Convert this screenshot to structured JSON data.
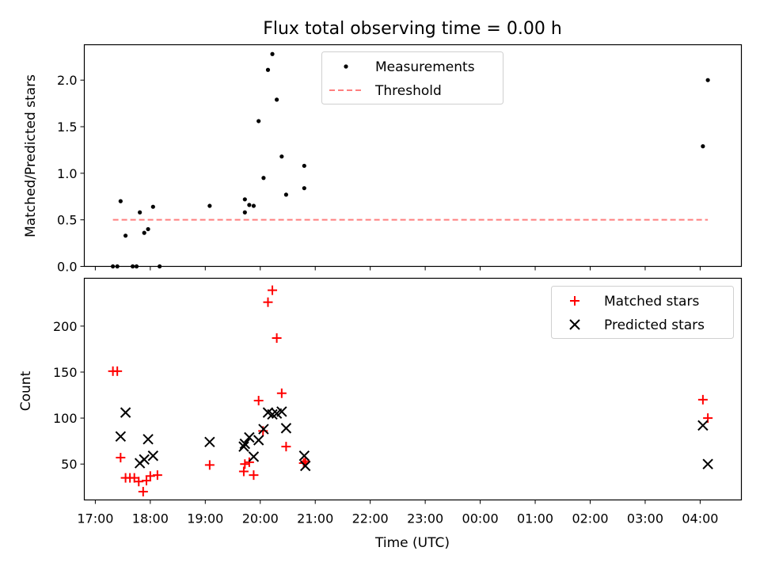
{
  "chart_data": [
    {
      "type": "scatter",
      "title": "Flux total observing time = 0.00 h",
      "xlabel": "",
      "ylabel": "Matched/Predicted stars",
      "ylim": [
        0,
        2.38
      ],
      "yticks": [
        "0.0",
        "0.5",
        "1.0",
        "1.5",
        "2.0"
      ],
      "ytick_values": [
        0,
        0.5,
        1.0,
        1.5,
        2.0
      ],
      "legend_position": "top-center",
      "series": [
        {
          "name": "Measurements",
          "marker": "dot",
          "color": "#000000",
          "points": [
            [
              17.32,
              0.0
            ],
            [
              17.4,
              0.0
            ],
            [
              17.46,
              0.7
            ],
            [
              17.55,
              0.33
            ],
            [
              17.68,
              0.0
            ],
            [
              17.75,
              0.0
            ],
            [
              17.81,
              0.58
            ],
            [
              17.89,
              0.36
            ],
            [
              17.96,
              0.4
            ],
            [
              18.05,
              0.64
            ],
            [
              18.17,
              0.0
            ],
            [
              19.08,
              0.65
            ],
            [
              19.72,
              0.72
            ],
            [
              19.72,
              0.58
            ],
            [
              19.8,
              0.66
            ],
            [
              19.88,
              0.65
            ],
            [
              19.97,
              1.56
            ],
            [
              20.06,
              0.95
            ],
            [
              20.14,
              2.11
            ],
            [
              20.22,
              2.28
            ],
            [
              20.3,
              1.79
            ],
            [
              20.39,
              1.18
            ],
            [
              20.47,
              0.77
            ],
            [
              20.8,
              0.84
            ],
            [
              20.8,
              1.08
            ],
            [
              28.05,
              1.29
            ],
            [
              28.14,
              2.0
            ]
          ]
        },
        {
          "name": "Threshold",
          "style": "dashed",
          "color": "#ff7f7f",
          "points": [
            [
              17.32,
              0.5
            ],
            [
              28.14,
              0.5
            ]
          ]
        }
      ]
    },
    {
      "type": "scatter",
      "title": "",
      "xlabel": "Time (UTC)",
      "ylabel": "Count",
      "ylim": [
        11,
        252
      ],
      "yticks": [
        "50",
        "100",
        "150",
        "200"
      ],
      "ytick_values": [
        50,
        100,
        150,
        200
      ],
      "xlim": [
        16.8,
        28.75
      ],
      "xtick_values": [
        17,
        18,
        19,
        20,
        21,
        22,
        23,
        24,
        25,
        26,
        27,
        28
      ],
      "xticks": [
        "17:00",
        "18:00",
        "19:00",
        "20:00",
        "21:00",
        "22:00",
        "23:00",
        "00:00",
        "01:00",
        "02:00",
        "03:00",
        "04:00"
      ],
      "legend_position": "top-right",
      "series": [
        {
          "name": "Matched stars",
          "marker": "plus",
          "color": "#ff0000",
          "points": [
            [
              17.32,
              151
            ],
            [
              17.4,
              151
            ],
            [
              17.46,
              57
            ],
            [
              17.55,
              35
            ],
            [
              17.63,
              35
            ],
            [
              17.71,
              35
            ],
            [
              17.79,
              31
            ],
            [
              17.87,
              20
            ],
            [
              17.93,
              32
            ],
            [
              18.0,
              37
            ],
            [
              18.13,
              38
            ],
            [
              19.08,
              49
            ],
            [
              19.7,
              42
            ],
            [
              19.72,
              50
            ],
            [
              19.8,
              52
            ],
            [
              19.88,
              38
            ],
            [
              19.97,
              119
            ],
            [
              20.05,
              86
            ],
            [
              20.14,
              226
            ],
            [
              20.22,
              239
            ],
            [
              20.3,
              187
            ],
            [
              20.39,
              127
            ],
            [
              20.47,
              69
            ],
            [
              20.79,
              51
            ],
            [
              20.82,
              53
            ],
            [
              28.05,
              120
            ],
            [
              28.14,
              100
            ]
          ]
        },
        {
          "name": "Predicted stars",
          "marker": "x",
          "color": "#000000",
          "points": [
            [
              17.46,
              80
            ],
            [
              17.55,
              106
            ],
            [
              17.81,
              51
            ],
            [
              17.89,
              55
            ],
            [
              17.96,
              77
            ],
            [
              18.05,
              59
            ],
            [
              19.08,
              74
            ],
            [
              19.7,
              69
            ],
            [
              19.72,
              72
            ],
            [
              19.8,
              79
            ],
            [
              19.88,
              58
            ],
            [
              19.97,
              76
            ],
            [
              20.06,
              88
            ],
            [
              20.14,
              106
            ],
            [
              20.22,
              104
            ],
            [
              20.3,
              105
            ],
            [
              20.39,
              107
            ],
            [
              20.47,
              89
            ],
            [
              20.8,
              59
            ],
            [
              20.82,
              48
            ],
            [
              28.05,
              92
            ],
            [
              28.14,
              50
            ]
          ]
        }
      ]
    }
  ]
}
